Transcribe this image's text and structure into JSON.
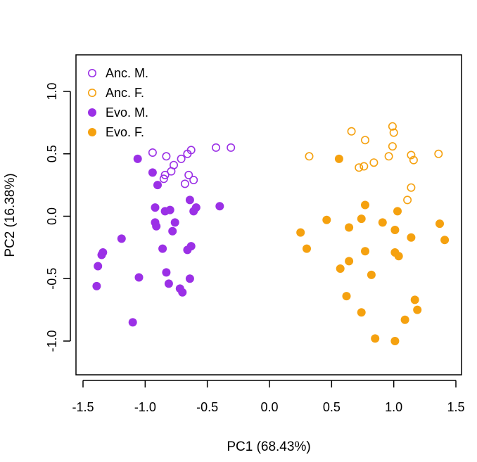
{
  "chart_data": {
    "type": "scatter",
    "title": "",
    "xlabel": "PC1 (68.43%)",
    "ylabel": "PC2 (16.38%)",
    "xlim": [
      -1.5,
      1.5
    ],
    "ylim": [
      -1.25,
      1.2
    ],
    "xticks": [
      -1.5,
      -1.0,
      -0.5,
      0.0,
      0.5,
      1.0,
      1.5
    ],
    "xtick_labels": [
      "-1.5",
      "-1.0",
      "-0.5",
      "0.0",
      "0.5",
      "1.0",
      "1.5"
    ],
    "yticks": [
      -1.0,
      -0.5,
      0.0,
      0.5,
      1.0
    ],
    "ytick_labels": [
      "-1.0",
      "-0.5",
      "0.0",
      "0.5",
      "1.0"
    ],
    "grid": false,
    "legend_position": "top-left",
    "series": [
      {
        "name": "Anc. M.",
        "color": "#9b30e6",
        "marker": "open-circle",
        "points": [
          [
            -0.31,
            0.55
          ],
          [
            -0.43,
            0.55
          ],
          [
            -0.63,
            0.53
          ],
          [
            -0.66,
            0.5
          ],
          [
            -0.71,
            0.46
          ],
          [
            -0.77,
            0.41
          ],
          [
            -0.83,
            0.48
          ],
          [
            -0.94,
            0.51
          ],
          [
            -0.79,
            0.36
          ],
          [
            -0.84,
            0.33
          ],
          [
            -0.65,
            0.33
          ],
          [
            -0.61,
            0.29
          ],
          [
            -0.68,
            0.26
          ],
          [
            -0.85,
            0.3
          ]
        ]
      },
      {
        "name": "Anc. F.",
        "color": "#f5a10f",
        "marker": "open-circle",
        "points": [
          [
            0.32,
            0.48
          ],
          [
            0.66,
            0.68
          ],
          [
            0.77,
            0.61
          ],
          [
            0.72,
            0.39
          ],
          [
            0.76,
            0.4
          ],
          [
            0.84,
            0.43
          ],
          [
            0.99,
            0.72
          ],
          [
            1.0,
            0.67
          ],
          [
            0.99,
            0.56
          ],
          [
            0.96,
            0.48
          ],
          [
            1.14,
            0.49
          ],
          [
            1.16,
            0.45
          ],
          [
            1.36,
            0.5
          ],
          [
            1.14,
            0.23
          ],
          [
            1.11,
            0.13
          ]
        ]
      },
      {
        "name": "Evo. M.",
        "color": "#9b30e6",
        "marker": "filled-circle",
        "points": [
          [
            -1.06,
            0.46
          ],
          [
            -0.94,
            0.35
          ],
          [
            -0.9,
            0.25
          ],
          [
            -0.92,
            0.07
          ],
          [
            -0.8,
            0.05
          ],
          [
            -0.64,
            0.13
          ],
          [
            -0.59,
            0.07
          ],
          [
            -0.4,
            0.08
          ],
          [
            -0.61,
            0.04
          ],
          [
            -0.84,
            0.04
          ],
          [
            -0.92,
            -0.05
          ],
          [
            -0.76,
            -0.05
          ],
          [
            -0.91,
            -0.08
          ],
          [
            -0.78,
            -0.12
          ],
          [
            -1.19,
            -0.18
          ],
          [
            -0.86,
            -0.26
          ],
          [
            -0.66,
            -0.27
          ],
          [
            -0.63,
            -0.24
          ],
          [
            -1.34,
            -0.29
          ],
          [
            -1.35,
            -0.31
          ],
          [
            -1.38,
            -0.4
          ],
          [
            -0.83,
            -0.45
          ],
          [
            -1.05,
            -0.49
          ],
          [
            -0.64,
            -0.5
          ],
          [
            -0.81,
            -0.54
          ],
          [
            -1.39,
            -0.56
          ],
          [
            -0.72,
            -0.58
          ],
          [
            -0.7,
            -0.61
          ],
          [
            -1.1,
            -0.85
          ]
        ]
      },
      {
        "name": "Evo. F.",
        "color": "#f5a10f",
        "marker": "filled-circle",
        "points": [
          [
            0.56,
            0.46
          ],
          [
            0.77,
            0.09
          ],
          [
            1.03,
            0.04
          ],
          [
            0.46,
            -0.03
          ],
          [
            0.74,
            -0.02
          ],
          [
            0.91,
            -0.05
          ],
          [
            1.37,
            -0.06
          ],
          [
            0.64,
            -0.09
          ],
          [
            1.01,
            -0.11
          ],
          [
            0.25,
            -0.13
          ],
          [
            1.14,
            -0.17
          ],
          [
            1.41,
            -0.19
          ],
          [
            0.3,
            -0.26
          ],
          [
            0.77,
            -0.28
          ],
          [
            1.01,
            -0.29
          ],
          [
            1.04,
            -0.32
          ],
          [
            0.64,
            -0.36
          ],
          [
            0.57,
            -0.42
          ],
          [
            0.82,
            -0.47
          ],
          [
            0.62,
            -0.64
          ],
          [
            1.17,
            -0.67
          ],
          [
            1.19,
            -0.75
          ],
          [
            0.74,
            -0.77
          ],
          [
            1.09,
            -0.83
          ],
          [
            0.85,
            -0.98
          ],
          [
            1.01,
            -1.0
          ]
        ]
      }
    ]
  }
}
